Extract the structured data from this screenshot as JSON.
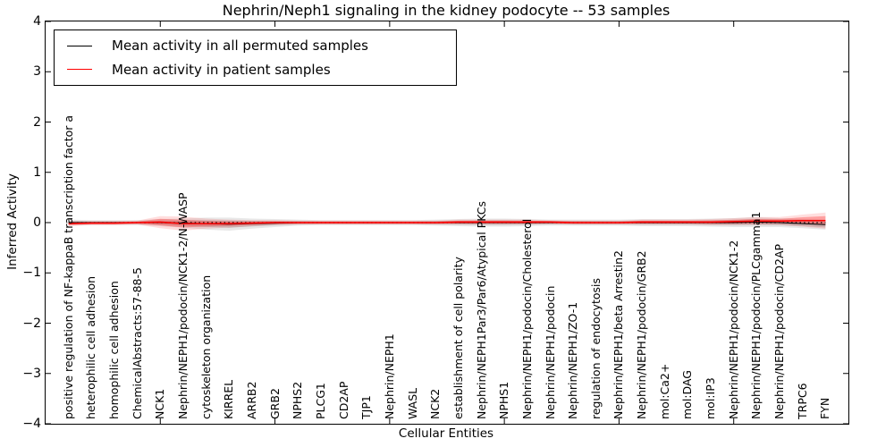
{
  "title": "Nephrin/Neph1 signaling in the kidney podocyte -- 53 samples",
  "axes": {
    "ylabel": "Inferred Activity",
    "xlabel": "Cellular Entities",
    "ytick_labels": [
      "4",
      "3",
      "2",
      "1",
      "0",
      "−1",
      "−2",
      "−3",
      "−4"
    ]
  },
  "legend": {
    "entries": [
      {
        "label": "Mean activity in all permuted samples",
        "color": "#000000"
      },
      {
        "label": "Mean activity in patient samples",
        "color": "#ff0000"
      }
    ]
  },
  "chart_data": {
    "type": "line",
    "title": "Nephrin/Neph1 signaling in the kidney podocyte -- 53 samples",
    "xlabel": "Cellular Entities",
    "ylabel": "Inferred Activity",
    "ylim": [
      -4,
      4
    ],
    "ytick_values": [
      4,
      3,
      2,
      1,
      0,
      -1,
      -2,
      -3,
      -4
    ],
    "xtick_mark_values": [
      5,
      10,
      15,
      20,
      25,
      30
    ],
    "grid": false,
    "zero_reference_line": true,
    "legend_position": "upper left",
    "categories": [
      "positive regulation of NF-kappaB transcription factor a",
      "heterophilic cell adhesion",
      "homophilic cell adhesion",
      "ChemicalAbstracts:57-88-5",
      "NCK1",
      "Nephrin/NEPH1/podocin/NCK1-2/N-WASP",
      "cytoskeleton organization",
      "KIRREL",
      "ARRB2",
      "GRB2",
      "NPHS2",
      "PLCG1",
      "CD2AP",
      "TJP1",
      "Nephrin/NEPH1",
      "WASL",
      "NCK2",
      "establishment of cell polarity",
      "Nephrin/NEPH1Par3/Par6/Atypical PKCs",
      "NPHS1",
      "Nephrin/NEPH1/podocin/Cholesterol",
      "Nephrin/NEPH1/podocin",
      "Nephrin/NEPH1/ZO-1",
      "regulation of endocytosis",
      "Nephrin/NEPH1/beta Arrestin2",
      "Nephrin/NEPH1/podocin/GRB2",
      "mol:Ca2+",
      "mol:DAG",
      "mol:IP3",
      "Nephrin/NEPH1/podocin/NCK1-2",
      "Nephrin/NEPH1/podocin/PLCgamma1",
      "Nephrin/NEPH1/podocin/CD2AP",
      "TRPC6",
      "FYN"
    ],
    "series": [
      {
        "name": "Mean activity in all permuted samples",
        "color": "#000000",
        "values": [
          0.0,
          0.0,
          0.0,
          0.0,
          0.0,
          -0.01,
          -0.02,
          -0.03,
          -0.02,
          -0.01,
          0.0,
          0.0,
          0.0,
          0.0,
          0.0,
          0.0,
          0.0,
          0.0,
          0.0,
          0.0,
          0.0,
          0.0,
          0.0,
          0.0,
          0.0,
          0.0,
          0.0,
          0.0,
          0.0,
          0.0,
          0.01,
          0.0,
          -0.02,
          -0.04
        ]
      },
      {
        "name": "Mean activity in patient samples",
        "color": "#ff0000",
        "values": [
          -0.02,
          -0.01,
          -0.01,
          0.0,
          0.01,
          -0.02,
          -0.02,
          -0.02,
          -0.01,
          0.0,
          0.0,
          0.0,
          0.0,
          0.0,
          0.0,
          0.0,
          0.0,
          0.01,
          0.01,
          0.01,
          0.01,
          0.01,
          0.0,
          0.0,
          0.0,
          0.01,
          0.01,
          0.01,
          0.01,
          0.02,
          0.03,
          0.03,
          0.04,
          0.04
        ]
      }
    ],
    "bands": [
      {
        "name": "permuted samples spread",
        "around_series": 0,
        "color": "#000000",
        "outer_alpha": 0.09,
        "inner_alpha": 0.14,
        "half_widths": [
          0.06,
          0.05,
          0.05,
          0.05,
          0.07,
          0.09,
          0.12,
          0.13,
          0.1,
          0.08,
          0.06,
          0.05,
          0.05,
          0.05,
          0.05,
          0.05,
          0.06,
          0.07,
          0.08,
          0.08,
          0.07,
          0.06,
          0.06,
          0.06,
          0.06,
          0.07,
          0.07,
          0.07,
          0.08,
          0.09,
          0.1,
          0.09,
          0.09,
          0.1
        ]
      },
      {
        "name": "patient samples spread",
        "around_series": 1,
        "color": "#ff0000",
        "outer_alpha": 0.13,
        "inner_alpha": 0.28,
        "half_widths": [
          0.05,
          0.04,
          0.04,
          0.04,
          0.12,
          0.14,
          0.1,
          0.08,
          0.06,
          0.05,
          0.04,
          0.04,
          0.04,
          0.04,
          0.04,
          0.04,
          0.04,
          0.05,
          0.05,
          0.05,
          0.05,
          0.04,
          0.04,
          0.04,
          0.04,
          0.05,
          0.05,
          0.05,
          0.06,
          0.07,
          0.08,
          0.08,
          0.12,
          0.16
        ]
      }
    ]
  }
}
